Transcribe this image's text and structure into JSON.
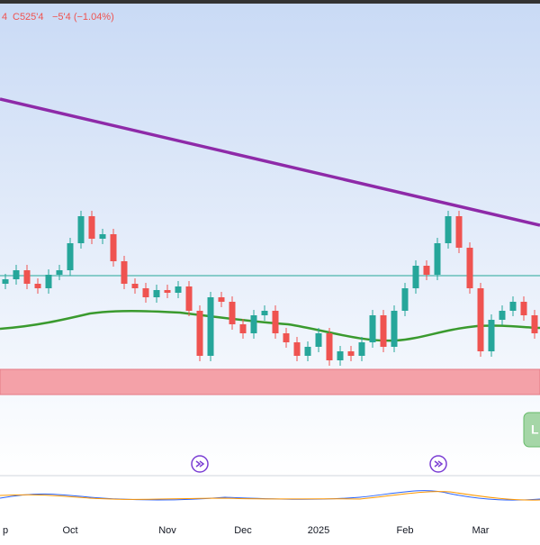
{
  "header": {
    "open_fragment": "4",
    "close": "C525'4",
    "change": "−5'4 (−1.04%)"
  },
  "button": "L",
  "chart_data": {
    "type": "candlestick",
    "categories": [
      "p",
      null,
      null,
      null,
      null,
      null,
      "Oct",
      null,
      null,
      null,
      null,
      null,
      null,
      null,
      null,
      "Nov",
      null,
      null,
      null,
      null,
      null,
      null,
      "Dec",
      null,
      null,
      null,
      null,
      null,
      null,
      "2025",
      null,
      null,
      null,
      null,
      null,
      null,
      null,
      "Feb",
      null,
      null,
      null,
      null,
      null,
      null,
      "Mar",
      null,
      null,
      null,
      null,
      null
    ],
    "open": [
      539.25,
      540.5,
      543,
      539.25,
      538,
      541.75,
      543,
      550.5,
      558,
      551.75,
      553,
      545.5,
      539.25,
      538,
      535.5,
      537.5,
      536.75,
      538.5,
      531.75,
      519.25,
      535.5,
      534.25,
      528,
      525.5,
      530.5,
      531.75,
      525.5,
      523,
      519.25,
      521.75,
      525.5,
      518,
      520.5,
      519.25,
      523,
      530.5,
      521.75,
      531.75,
      538,
      544.25,
      541.75,
      550.5,
      558,
      549.25,
      538,
      520.5,
      529.25,
      531.75,
      534.25,
      530.5
    ],
    "high": [
      542,
      544.5,
      544.5,
      540.75,
      543.25,
      544.5,
      552,
      559.5,
      559.5,
      554.5,
      554.5,
      547,
      540.75,
      539.5,
      539,
      539,
      540,
      540,
      533.25,
      537,
      537,
      535.75,
      529.5,
      532,
      533.25,
      533.25,
      527,
      524.5,
      523.25,
      527,
      527,
      522,
      522,
      524.5,
      532,
      532,
      533.25,
      539.5,
      545.75,
      545.75,
      552,
      559.5,
      559.5,
      550.75,
      539.5,
      530.75,
      533.25,
      535.75,
      535.75,
      532
    ],
    "low": [
      537.75,
      539,
      537.75,
      536.5,
      536.5,
      540.25,
      541.5,
      549,
      550.25,
      550.25,
      544,
      537.75,
      536.5,
      534,
      534,
      535.25,
      535.25,
      530.25,
      517.75,
      517.75,
      532.75,
      526.5,
      524,
      524,
      529,
      524,
      521.5,
      517.75,
      517.75,
      520.25,
      516.5,
      516.5,
      517.75,
      517.75,
      521.5,
      520.25,
      520.25,
      530.25,
      536.5,
      540.25,
      540.25,
      549,
      547.75,
      536.5,
      519,
      519,
      527.75,
      530.25,
      529,
      524
    ],
    "close": [
      540.5,
      543,
      539.25,
      538,
      541.75,
      543,
      550.5,
      558,
      551.75,
      553,
      545.5,
      539.25,
      538,
      535.5,
      537.5,
      536.75,
      538.5,
      531.75,
      519.25,
      535.5,
      534.25,
      528,
      525.5,
      530.5,
      531.75,
      525.5,
      523,
      519.25,
      521.75,
      525.5,
      518,
      520.5,
      519.25,
      523,
      530.5,
      521.75,
      531.75,
      538,
      544.25,
      541.75,
      550.5,
      558,
      549.25,
      538,
      520.5,
      529.25,
      531.75,
      534.25,
      530.5,
      525.5
    ],
    "ylim": [
      508,
      618
    ],
    "up_color": "#26a69a",
    "down_color": "#ef5350"
  }
}
